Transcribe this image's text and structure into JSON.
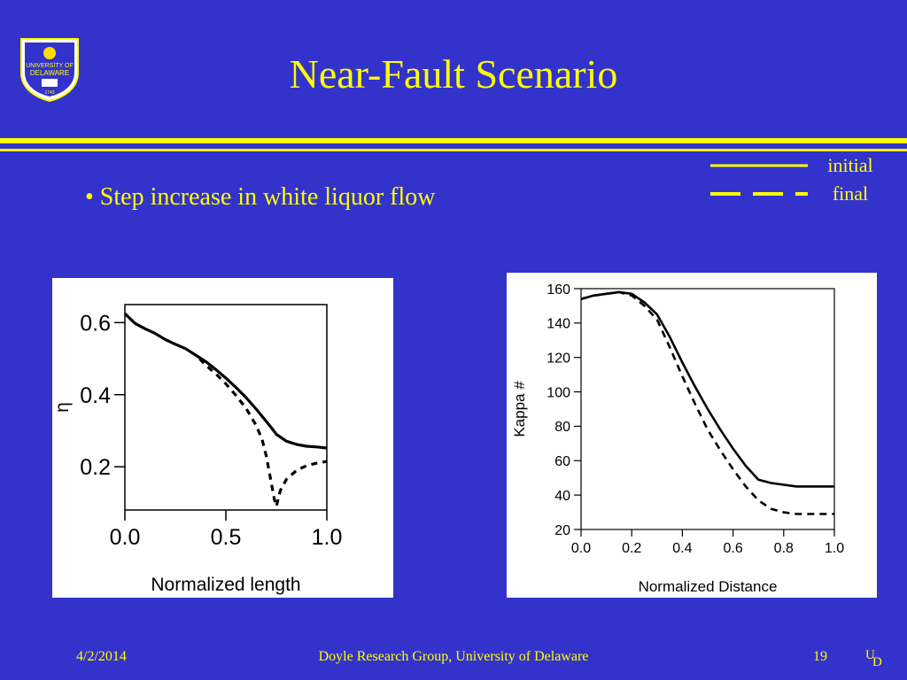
{
  "slide": {
    "title": "Near-Fault Scenario",
    "bullet": "• Step increase in white liquor flow",
    "footer_date": "4/2/2014",
    "footer_center": "Doyle Research Group, University of Delaware",
    "footer_page": "19",
    "logo_text_top": "UNIVERSITY OF",
    "logo_text_bottom": "DELAWARE",
    "logo_year": "1743",
    "footer_logo_u": "U",
    "footer_logo_d": "D"
  },
  "colors": {
    "background": "#3333cc",
    "text": "#ffff00",
    "plot_line": "#000000",
    "panel": "#ffffff"
  },
  "legend": [
    {
      "label": "initial",
      "style": "solid"
    },
    {
      "label": "final",
      "style": "dashed"
    }
  ],
  "chart_data": [
    {
      "type": "line",
      "xlabel": "Normalized length",
      "ylabel": "η",
      "xlim": [
        0.0,
        1.0
      ],
      "ylim": [
        0.08,
        0.65
      ],
      "xticks": [
        "0.0",
        "0.5",
        "1.0"
      ],
      "yticks": [
        "0.2",
        "0.4",
        "0.6"
      ],
      "grid": false,
      "series": [
        {
          "name": "initial",
          "style": "solid",
          "x": [
            0.0,
            0.05,
            0.1,
            0.15,
            0.2,
            0.25,
            0.3,
            0.35,
            0.4,
            0.45,
            0.5,
            0.55,
            0.6,
            0.65,
            0.7,
            0.73,
            0.75,
            0.8,
            0.85,
            0.9,
            0.95,
            1.0
          ],
          "y": [
            0.625,
            0.598,
            0.583,
            0.57,
            0.553,
            0.54,
            0.528,
            0.51,
            0.492,
            0.47,
            0.446,
            0.42,
            0.392,
            0.36,
            0.326,
            0.305,
            0.29,
            0.271,
            0.262,
            0.257,
            0.255,
            0.252
          ]
        },
        {
          "name": "final",
          "style": "dashed",
          "x": [
            0.37,
            0.4,
            0.45,
            0.5,
            0.55,
            0.6,
            0.65,
            0.68,
            0.7,
            0.72,
            0.74,
            0.75,
            0.77,
            0.8,
            0.85,
            0.9,
            0.95,
            1.0
          ],
          "y": [
            0.5,
            0.482,
            0.458,
            0.43,
            0.398,
            0.362,
            0.315,
            0.275,
            0.23,
            0.17,
            0.11,
            0.09,
            0.135,
            0.165,
            0.19,
            0.203,
            0.21,
            0.215
          ]
        }
      ]
    },
    {
      "type": "line",
      "xlabel": "Normalized Distance",
      "ylabel": "Kappa #",
      "xlim": [
        0.0,
        1.0
      ],
      "ylim": [
        20,
        160
      ],
      "xticks": [
        "0.0",
        "0.2",
        "0.4",
        "0.6",
        "0.8",
        "1.0"
      ],
      "yticks": [
        "20",
        "40",
        "60",
        "80",
        "100",
        "120",
        "140",
        "160"
      ],
      "grid": false,
      "series": [
        {
          "name": "initial",
          "style": "solid",
          "x": [
            0.0,
            0.05,
            0.1,
            0.15,
            0.2,
            0.25,
            0.3,
            0.35,
            0.4,
            0.45,
            0.5,
            0.55,
            0.6,
            0.65,
            0.7,
            0.75,
            0.8,
            0.85,
            0.9,
            0.95,
            1.0
          ],
          "y": [
            154,
            156,
            157,
            158,
            157,
            152,
            145,
            132,
            117,
            103,
            90,
            78,
            67,
            57,
            49,
            47,
            46,
            45,
            45,
            45,
            45
          ]
        },
        {
          "name": "final",
          "style": "dashed",
          "x": [
            0.0,
            0.05,
            0.1,
            0.15,
            0.2,
            0.25,
            0.3,
            0.35,
            0.4,
            0.45,
            0.5,
            0.55,
            0.6,
            0.65,
            0.7,
            0.75,
            0.8,
            0.85,
            0.9,
            0.95,
            1.0
          ],
          "y": [
            154,
            156,
            157,
            158,
            156,
            150,
            142,
            126,
            109,
            93,
            78,
            66,
            55,
            45,
            37,
            32,
            30,
            29,
            29,
            29,
            29
          ]
        }
      ]
    }
  ]
}
